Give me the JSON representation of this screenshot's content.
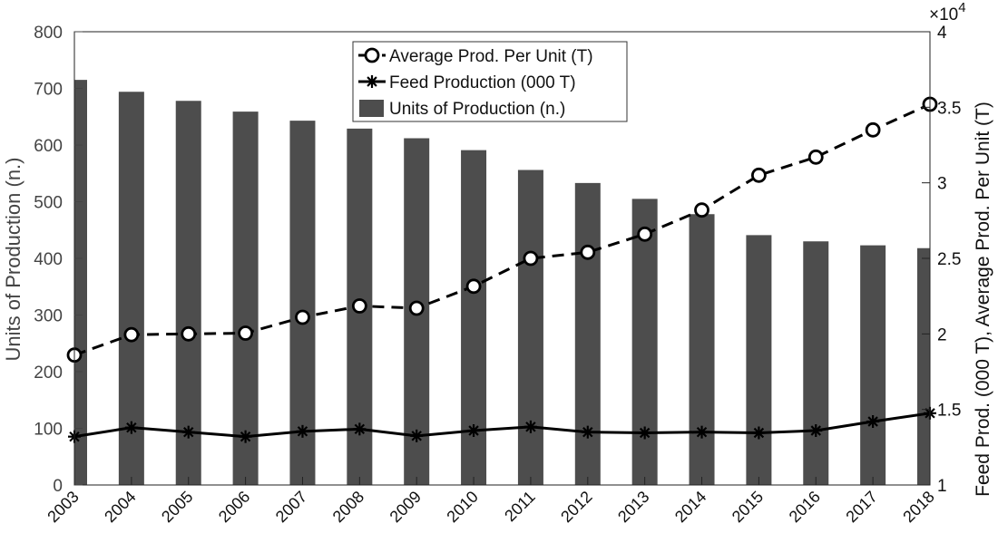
{
  "chart_data": {
    "type": "bar",
    "categories": [
      "2003",
      "2004",
      "2005",
      "2006",
      "2007",
      "2008",
      "2009",
      "2010",
      "2011",
      "2012",
      "2013",
      "2014",
      "2015",
      "2016",
      "2017",
      "2018"
    ],
    "series": [
      {
        "name": "Units of Production (n.)",
        "type": "bar",
        "axis": "left",
        "color": "#4d4d4d",
        "values": [
          715,
          694,
          678,
          659,
          643,
          629,
          612,
          591,
          556,
          533,
          505,
          478,
          441,
          430,
          423,
          418
        ]
      },
      {
        "name": "Average Prod. Per Unit (T)",
        "type": "line",
        "style": "dashed",
        "marker": "circle",
        "axis": "right",
        "color": "#000000",
        "values": [
          18600,
          19950,
          20000,
          20050,
          21100,
          21850,
          21700,
          23150,
          25000,
          25400,
          26600,
          28200,
          30500,
          31700,
          33500,
          35200
        ]
      },
      {
        "name": "Feed Production (000 T)",
        "type": "line",
        "style": "solid",
        "marker": "asterisk",
        "axis": "right",
        "color": "#000000",
        "values": [
          13200,
          13800,
          13500,
          13200,
          13550,
          13700,
          13250,
          13600,
          13850,
          13500,
          13450,
          13500,
          13450,
          13600,
          14200,
          14750
        ]
      }
    ],
    "ylabel": "Units of Production (n.)",
    "ylim": [
      0,
      800
    ],
    "yticks": [
      "0",
      "100",
      "200",
      "300",
      "400",
      "500",
      "600",
      "700",
      "800"
    ],
    "y2label": "Feed Prod. (000 T), Average Prod. Per Unit (T)",
    "y2lim": [
      10000,
      40000
    ],
    "y2ticks": [
      "1",
      "1.5",
      "2",
      "2.5",
      "3",
      "3.5",
      "4"
    ],
    "y2_exponent": "×10",
    "y2_exponent_power": "4",
    "legend_order": [
      1,
      2,
      0
    ],
    "legend_position": "top-center",
    "grid": false
  }
}
